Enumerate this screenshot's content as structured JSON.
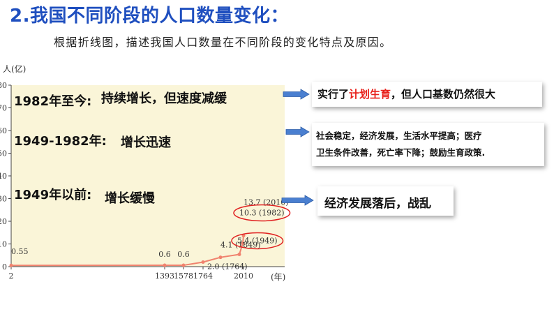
{
  "header": {
    "title": "2.我国不同阶段的人口数量变化：",
    "instruction": "根据折线图，描述我国人口数量在不同阶段的变化特点及原因。"
  },
  "colors": {
    "title": "#1f4fbf",
    "plot_bg": "#faf5d8",
    "line": "#f0826e",
    "arrow": "#4a7fd0",
    "ellipse": "#e02020",
    "highlight": "#e8201a"
  },
  "stages": [
    {
      "period": "1982年至今:",
      "trait": "持续增长，但速度减缓"
    },
    {
      "period": "1949-1982年:",
      "trait": "增长迅速"
    },
    {
      "period": "1949年以前:",
      "trait": "增长缓慢"
    }
  ],
  "causes": {
    "recent": {
      "prefix": "实行了",
      "highlight": "计划生育",
      "suffix": "，但人口基数仍然很大"
    },
    "mid": {
      "line1": "社会稳定，经济发展，生活水平提高；医疗",
      "line2": "卫生条件改善，死亡率下降；鼓励生育政策."
    },
    "early": {
      "text": "经济发展落后，战乱"
    }
  },
  "chart_data": {
    "type": "line",
    "ylabel": "人(亿)",
    "xlabel": "(年)",
    "ylim": [
      0,
      80
    ],
    "yticks": [
      0,
      10,
      20,
      30,
      40,
      50,
      60,
      70,
      80
    ],
    "x_tick_labels": [
      "2",
      "1393",
      "1578",
      "1764",
      "2010"
    ],
    "series": [
      {
        "points": [
          {
            "x": 2,
            "y": 0.55
          },
          {
            "x": 1393,
            "y": 0.6
          },
          {
            "x": 1578,
            "y": 0.6
          },
          {
            "x": 1764,
            "y": 2.0
          },
          {
            "x": 1849,
            "y": 4.1
          },
          {
            "x": 1949,
            "y": 5.4
          },
          {
            "x": 1982,
            "y": 10.3
          },
          {
            "x": 2010,
            "y": 13.7
          }
        ]
      }
    ],
    "data_labels": [
      "0.55",
      "0.6",
      "0.6",
      "2.0 (1764)",
      "4.1 (1849)",
      "5.4 (1949)",
      "10.3 (1982)",
      "13.7 (2010)"
    ],
    "circled_labels": [
      "5.4 (1949)",
      "10.3 (1982)"
    ]
  }
}
